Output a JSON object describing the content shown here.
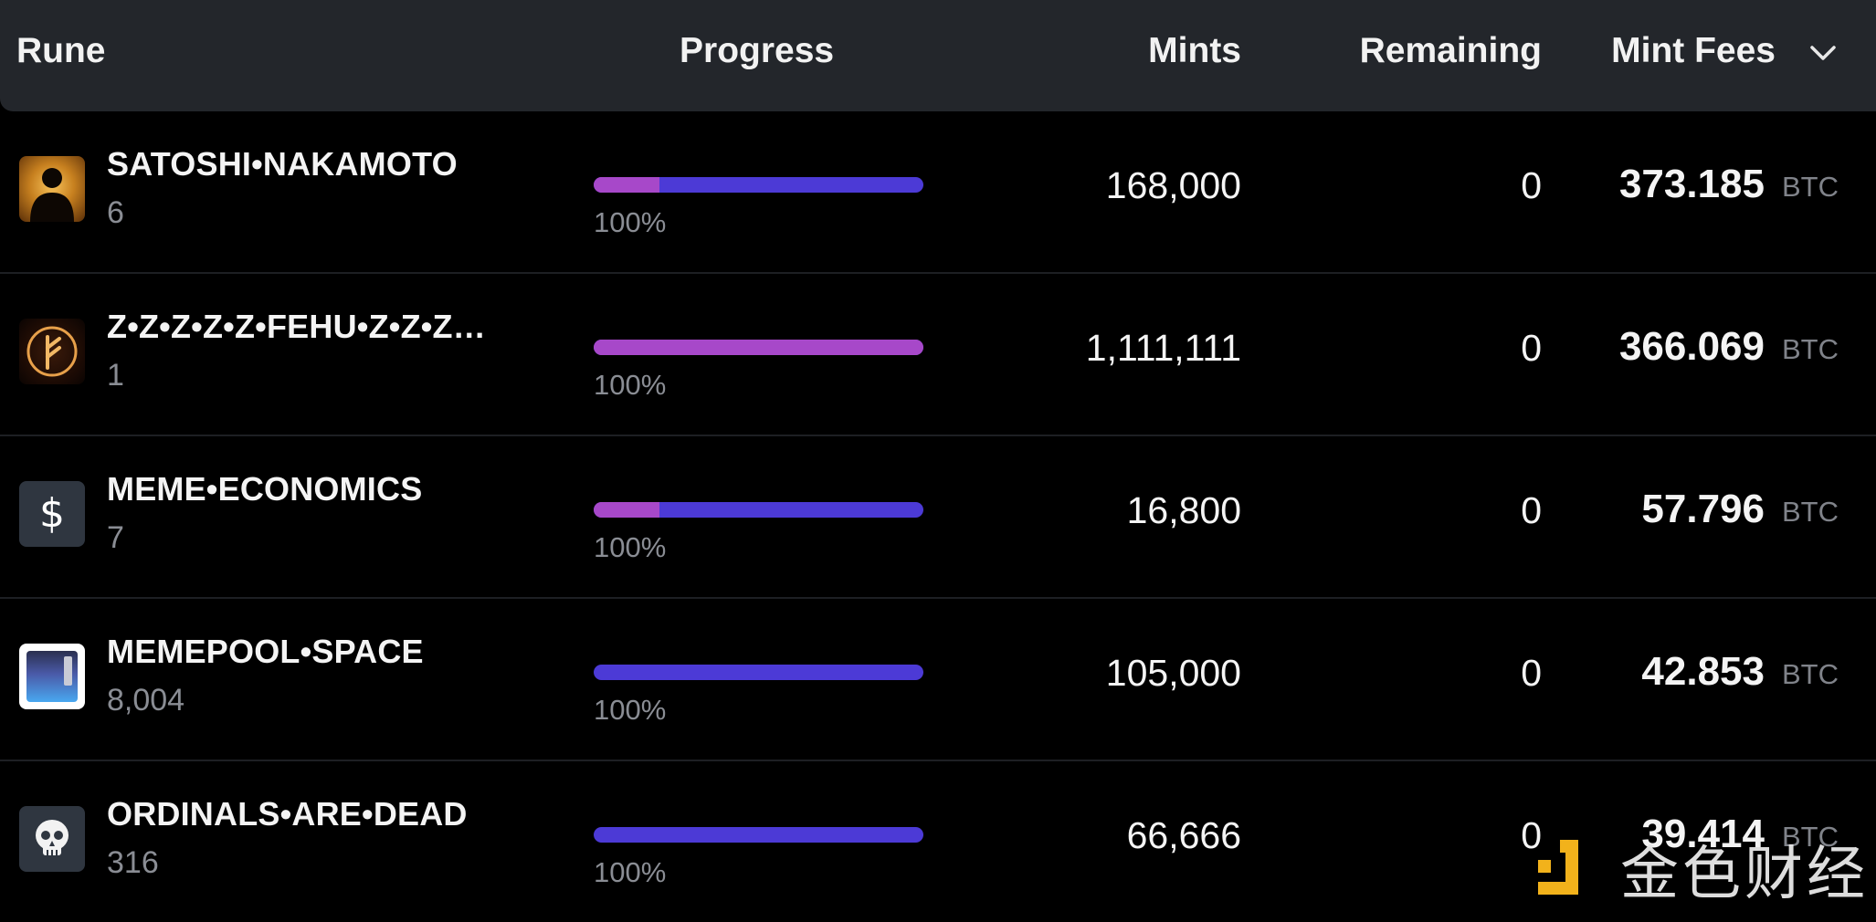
{
  "header": {
    "rune": "Rune",
    "progress": "Progress",
    "mints": "Mints",
    "remaining": "Remaining",
    "mint_fees": "Mint Fees"
  },
  "rows": [
    {
      "name": "SATOSHI•NAKAMOTO",
      "holders": "6",
      "progress_label": "100%",
      "progress_pink_fraction": 0.2,
      "mints": "168,000",
      "remaining": "0",
      "fee": "373.185",
      "unit": "BTC",
      "icon": "silhouette-icon"
    },
    {
      "name": "Z•Z•Z•Z•Z•FEHU•Z•Z•Z…",
      "holders": "1",
      "progress_label": "100%",
      "progress_pink_fraction": 1.0,
      "mints": "1,111,111",
      "remaining": "0",
      "fee": "366.069",
      "unit": "BTC",
      "icon": "fehu-rune-icon"
    },
    {
      "name": "MEME•ECONOMICS",
      "holders": "7",
      "progress_label": "100%",
      "progress_pink_fraction": 0.2,
      "mints": "16,800",
      "remaining": "0",
      "fee": "57.796",
      "unit": "BTC",
      "icon": "dollar-icon"
    },
    {
      "name": "MEMEPOOL•SPACE",
      "holders": "8,004",
      "progress_label": "100%",
      "progress_pink_fraction": 0.0,
      "mints": "105,000",
      "remaining": "0",
      "fee": "42.853",
      "unit": "BTC",
      "icon": "memepool-icon"
    },
    {
      "name": "ORDINALS•ARE•DEAD",
      "holders": "316",
      "progress_label": "100%",
      "progress_pink_fraction": 0.0,
      "mints": "66,666",
      "remaining": "0",
      "fee": "39.414",
      "unit": "BTC",
      "icon": "skull-icon"
    }
  ],
  "watermark": {
    "text": "金色财经"
  },
  "colors": {
    "bar_blue": "#4c3ad6",
    "bar_pink": "#a748c9",
    "header_bg": "#23262b"
  }
}
